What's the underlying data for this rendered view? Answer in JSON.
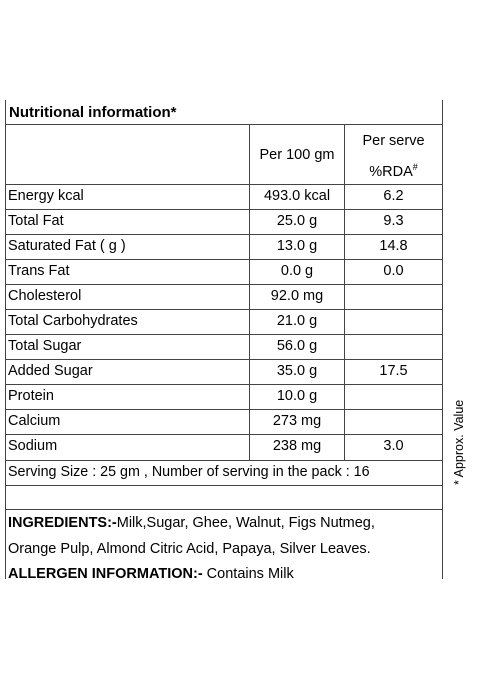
{
  "title": "Nutritional  information*",
  "columns": {
    "per100": "Per 100 gm",
    "perServe_line1": "Per serve",
    "perServe_line2": "%RDA",
    "perServe_sup": "#"
  },
  "rows": [
    {
      "name": "Energy kcal",
      "per100": "493.0 kcal",
      "rda": "6.2"
    },
    {
      "name": "Total Fat",
      "per100": "25.0 g",
      "rda": "9.3"
    },
    {
      "name": "Saturated Fat  ( g )",
      "per100": "13.0 g",
      "rda": "14.8"
    },
    {
      "name": "Trans Fat",
      "per100": "0.0 g",
      "rda": "0.0"
    },
    {
      "name": "Cholesterol",
      "per100": "92.0 mg",
      "rda": ""
    },
    {
      "name": "Total Carbohydrates",
      "per100": "21.0 g",
      "rda": ""
    },
    {
      "name": "Total Sugar",
      "per100": "56.0 g",
      "rda": ""
    },
    {
      "name": "Added Sugar",
      "per100": "35.0 g",
      "rda": "17.5"
    },
    {
      "name": "Protein",
      "per100": "10.0 g",
      "rda": ""
    },
    {
      "name": "Calcium",
      "per100": "273 mg",
      "rda": ""
    },
    {
      "name": "Sodium",
      "per100": "238 mg",
      "rda": "3.0"
    }
  ],
  "serving": "Serving Size : 25 gm , Number of serving in the pack : 16",
  "ingredients_label": "INGREDIENTS:-",
  "ingredients_line1": "Milk,Sugar, Ghee, Walnut, Figs Nutmeg,",
  "ingredients_line2": "Orange Pulp, Almond Citric Acid, Papaya, Silver Leaves.",
  "allergen_label": "ALLERGEN INFORMATION:-",
  "allergen_text": " Contains Milk",
  "side_note": "* Approx. Value"
}
